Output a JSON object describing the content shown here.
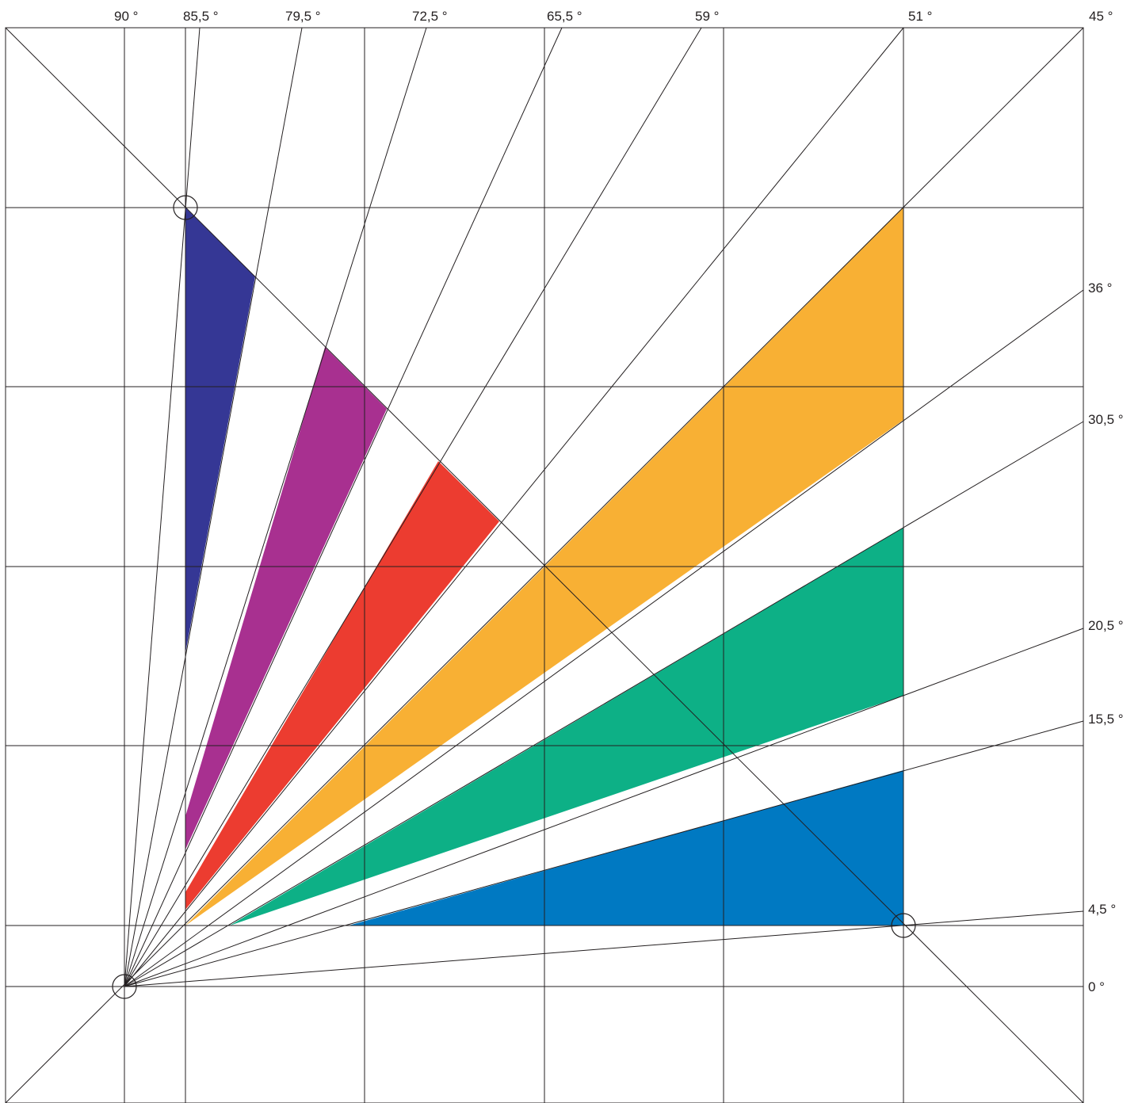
{
  "angle_labels": [
    {
      "id": "top-90",
      "text": "90 °"
    },
    {
      "id": "top-85-5",
      "text": "85,5 °"
    },
    {
      "id": "top-79-5",
      "text": "79,5 °"
    },
    {
      "id": "top-72-5",
      "text": "72,5 °"
    },
    {
      "id": "top-65-5",
      "text": "65,5 °"
    },
    {
      "id": "top-59",
      "text": "59 °"
    },
    {
      "id": "top-51",
      "text": "51 °"
    },
    {
      "id": "top-45",
      "text": "45 °"
    },
    {
      "id": "right-36",
      "text": "36 °"
    },
    {
      "id": "right-30-5",
      "text": "30,5 °"
    },
    {
      "id": "right-20-5",
      "text": "20,5 °"
    },
    {
      "id": "right-15-5",
      "text": "15,5 °"
    },
    {
      "id": "right-4-5",
      "text": "4,5 °"
    },
    {
      "id": "right-0",
      "text": "0 °"
    }
  ],
  "wedges": [
    {
      "name": "navy",
      "color": "#353795"
    },
    {
      "name": "purple",
      "color": "#a83090"
    },
    {
      "name": "red",
      "color": "#ec3c30"
    },
    {
      "name": "orange",
      "color": "#f8b034"
    },
    {
      "name": "green",
      "color": "#0db086"
    },
    {
      "name": "blue",
      "color": "#0079c2"
    }
  ]
}
